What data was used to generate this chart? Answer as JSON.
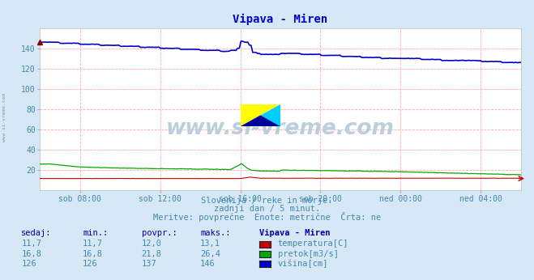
{
  "title": "Vipava - Miren",
  "title_color": "#0000cc",
  "bg_color": "#d6e8f5",
  "plot_bg_color": "#ffffff",
  "grid_color": "#ffaaaa",
  "text_color": "#4488aa",
  "watermark": "www.si-vreme.com",
  "subtitle1": "Slovenija / reke in morje.",
  "subtitle2": "zadnji dan / 5 minut.",
  "subtitle3": "Meritve: povprečne  Enote: metrične  Črta: ne",
  "xticklabels": [
    "sob 08:00",
    "sob 12:00",
    "sob 16:00",
    "sob 20:00",
    "ned 00:00",
    "ned 04:00"
  ],
  "ylim": [
    0,
    160
  ],
  "yticks": [
    20,
    40,
    60,
    80,
    100,
    120,
    140
  ],
  "legend_headers": [
    "sedaj:",
    "min.:",
    "povpr.:",
    "maks.:",
    "Vipava - Miren"
  ],
  "legend_rows": [
    [
      "11,7",
      "11,7",
      "12,0",
      "13,1",
      "temperatura[C]",
      "#cc0000"
    ],
    [
      "16,8",
      "16,8",
      "21,8",
      "26,4",
      "pretok[m3/s]",
      "#00aa00"
    ],
    [
      "126",
      "126",
      "137",
      "146",
      "višina[cm]",
      "#0000cc"
    ]
  ],
  "line_colors": [
    "#cc0000",
    "#00aa00",
    "#0000cc"
  ],
  "n_points": 288
}
